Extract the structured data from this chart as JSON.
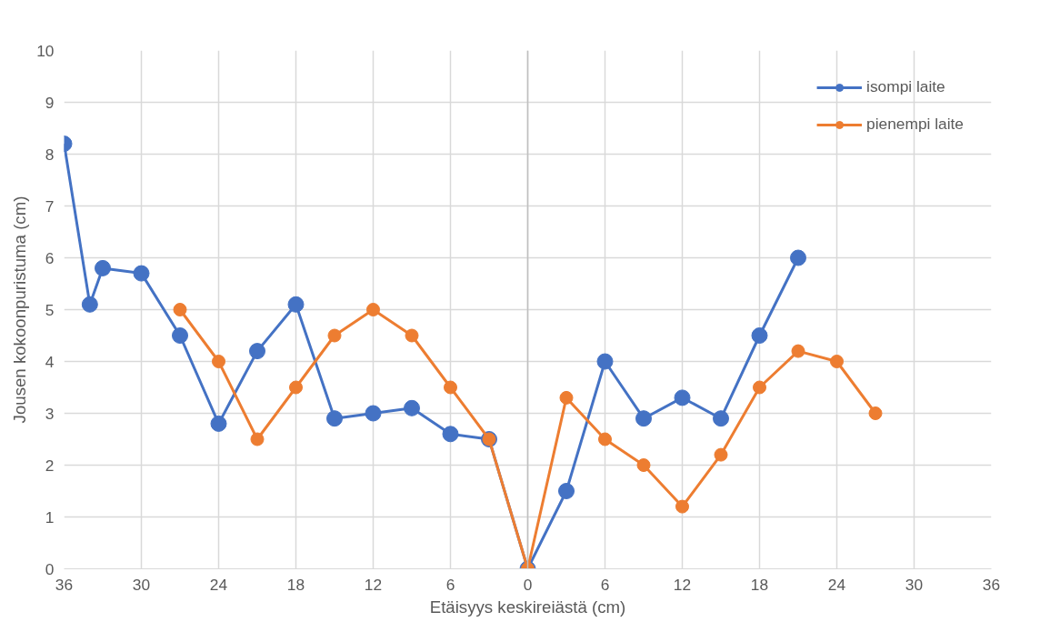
{
  "chart_data": {
    "type": "line",
    "xlabel": "Etäisyys keskireiästä (cm)",
    "ylabel": "Jousen kokoonpuristuma (cm)",
    "xlim": [
      -36,
      36
    ],
    "xticks": [
      {
        "value": -36,
        "label": "36"
      },
      {
        "value": -30,
        "label": "30"
      },
      {
        "value": -24,
        "label": "24"
      },
      {
        "value": -18,
        "label": "18"
      },
      {
        "value": -12,
        "label": "12"
      },
      {
        "value": -6,
        "label": "6"
      },
      0,
      6,
      12,
      18,
      24,
      30,
      36
    ],
    "ylim": [
      0,
      10
    ],
    "yticks": [
      0,
      1,
      2,
      3,
      4,
      5,
      6,
      7,
      8,
      9,
      10
    ],
    "grid": true,
    "legend": "top right",
    "marker": "circle",
    "line_style": "solid",
    "ref_lines": [
      {
        "axis": "x",
        "value": 0,
        "color": "#bfbfbf"
      }
    ],
    "series": [
      {
        "name": "isompi laite",
        "color": "#4472c4",
        "x": [
          -36,
          -34,
          -33,
          -30,
          -27,
          -24,
          -21,
          -18,
          -15,
          -12,
          -9,
          -6,
          -3,
          0,
          3,
          6,
          9,
          12,
          15,
          18,
          21
        ],
        "values": [
          8.2,
          5.1,
          5.8,
          5.7,
          4.5,
          2.8,
          4.2,
          5.1,
          2.9,
          3.0,
          3.1,
          2.6,
          2.5,
          0,
          1.5,
          4.0,
          2.9,
          3.3,
          2.9,
          4.5,
          6.0
        ]
      },
      {
        "name": "pienempi laite",
        "color": "#ed7d31",
        "x": [
          -27,
          -24,
          -21,
          -18,
          -15,
          -12,
          -9,
          -6,
          -3,
          0,
          3,
          6,
          9,
          12,
          15,
          18,
          21,
          24,
          27
        ],
        "values": [
          5.0,
          4.0,
          2.5,
          3.5,
          4.5,
          5.0,
          4.5,
          3.5,
          2.5,
          0,
          3.3,
          2.5,
          2.0,
          1.2,
          2.2,
          3.5,
          4.2,
          4.0,
          3.0
        ]
      }
    ]
  }
}
